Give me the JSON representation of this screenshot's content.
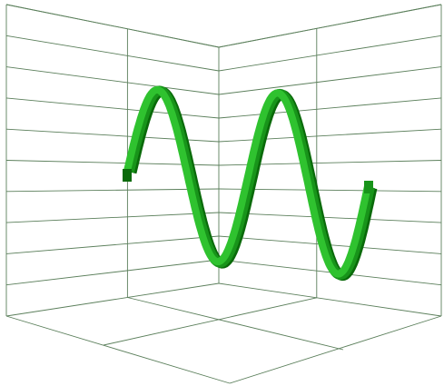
{
  "chart_data": {
    "type": "line",
    "dimension": "3d",
    "title": "",
    "xlabel": "",
    "ylabel": "",
    "xlim": [
      0,
      12.566
    ],
    "ylim": [
      -1,
      1
    ],
    "grid": true,
    "legend": "none",
    "tick_labels_shown": false,
    "series": [
      {
        "function": "sin",
        "x_start": 0,
        "x_end": 12.566,
        "samples": 161,
        "color_light": "#2fc22f",
        "color_dark": "#0a6a0a",
        "color_mid": "#18941a",
        "style": "3d-ribbon"
      }
    ]
  },
  "colors": {
    "background": "#ffffff",
    "grid": "#5b7f5b"
  }
}
